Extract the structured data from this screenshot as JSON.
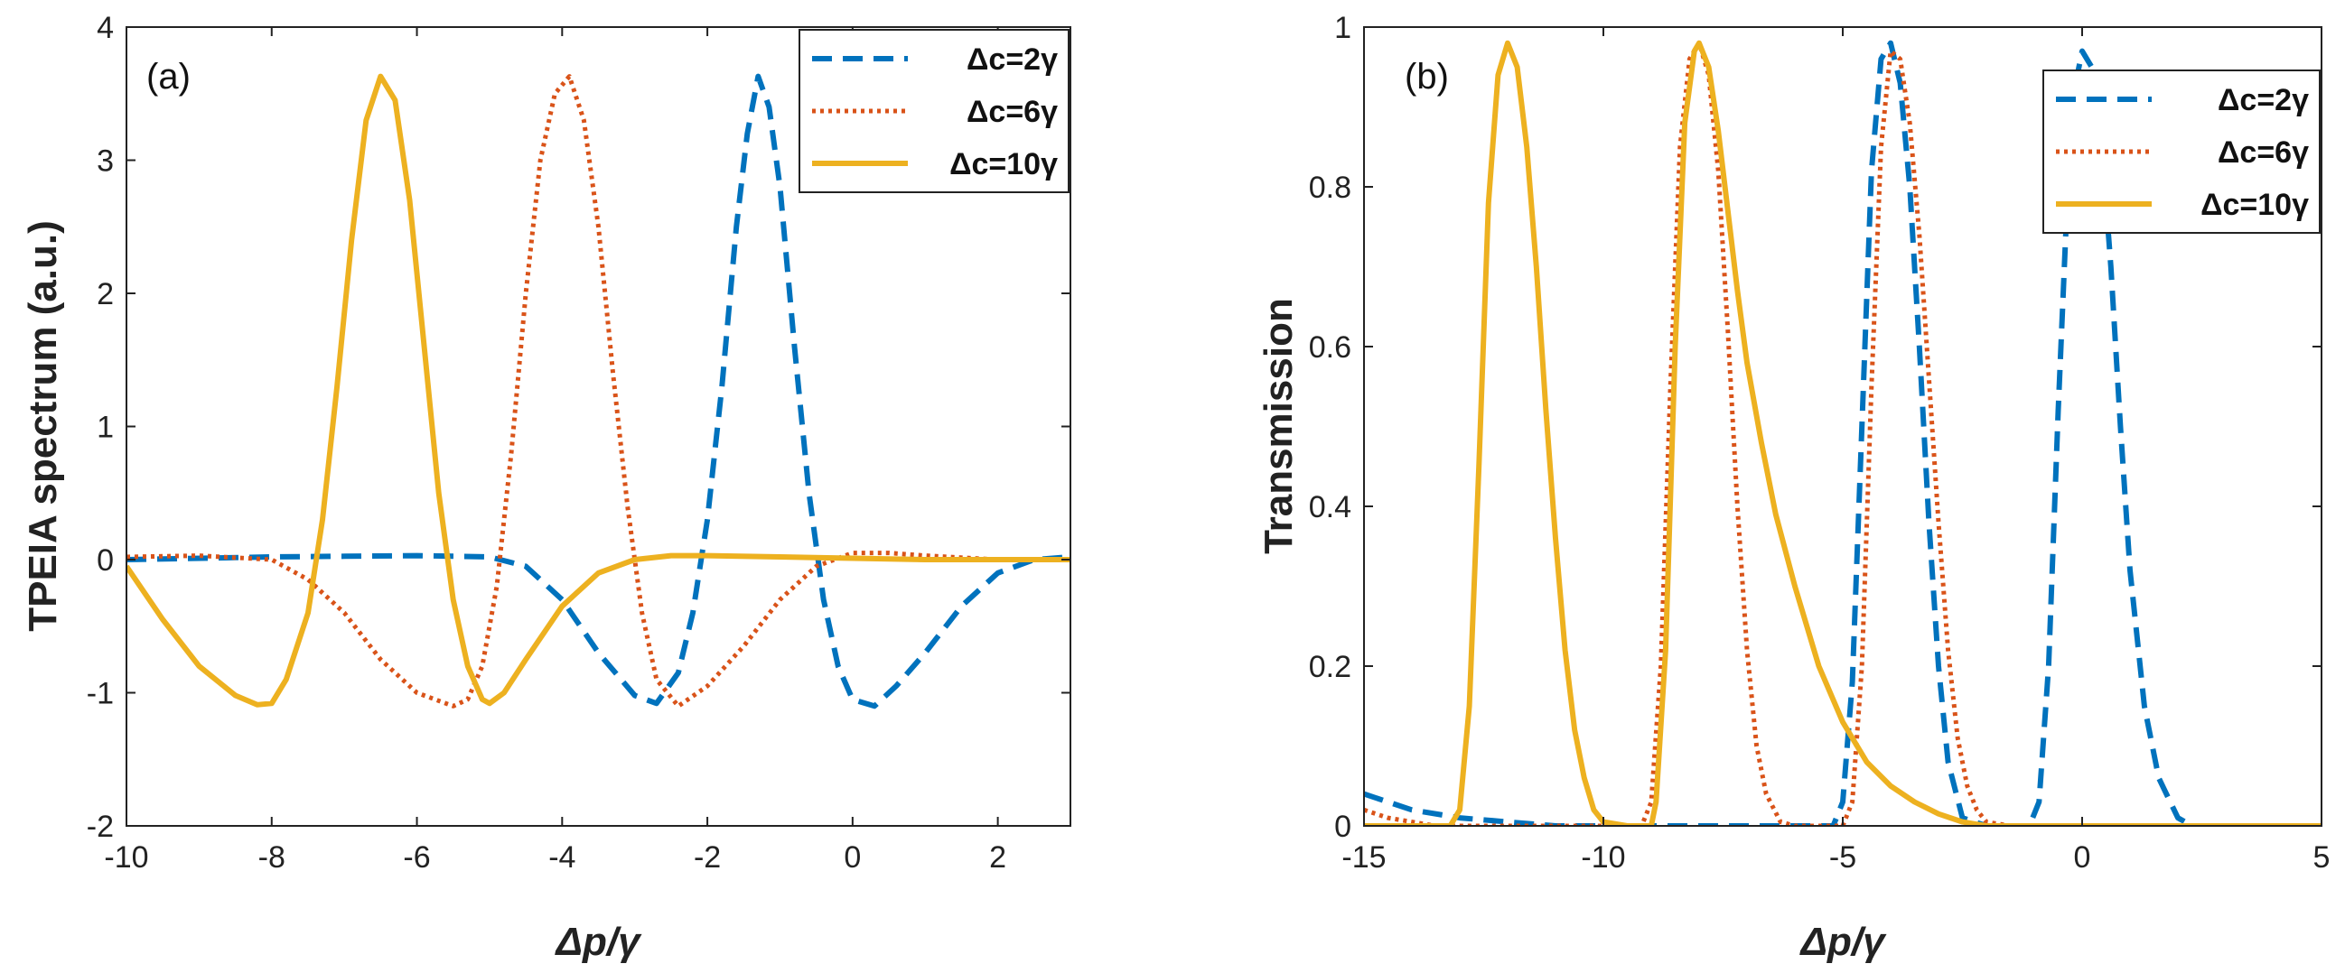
{
  "colors": {
    "dc2": "#0072BD",
    "dc6": "#D95319",
    "dc10": "#EDB120",
    "axis": "#222222"
  },
  "chart_data": [
    {
      "type": "line",
      "panel_label": "(a)",
      "xlabel": "Δp/γ",
      "ylabel": "TPEIA spectrum (a.u.)",
      "xlim": [
        -10,
        3
      ],
      "ylim": [
        -2,
        4
      ],
      "xticks": [
        -10,
        -8,
        -6,
        -4,
        -2,
        0,
        2
      ],
      "yticks": [
        -2,
        -1,
        0,
        1,
        2,
        3,
        4
      ],
      "legend_position": "top-right",
      "series": [
        {
          "name": "Δc=2γ",
          "color_key": "dc2",
          "style": "dashed",
          "x": [
            -10,
            -8,
            -6,
            -5,
            -4.5,
            -4,
            -3.5,
            -3,
            -2.7,
            -2.4,
            -2.2,
            -2.0,
            -1.8,
            -1.6,
            -1.45,
            -1.3,
            -1.15,
            -1.0,
            -0.8,
            -0.6,
            -0.4,
            -0.2,
            0.0,
            0.3,
            0.6,
            1.0,
            1.5,
            2.0,
            2.5,
            3.0
          ],
          "y": [
            0.0,
            0.02,
            0.03,
            0.02,
            -0.05,
            -0.3,
            -0.7,
            -1.02,
            -1.08,
            -0.85,
            -0.4,
            0.3,
            1.3,
            2.5,
            3.2,
            3.63,
            3.4,
            2.8,
            1.6,
            0.5,
            -0.3,
            -0.8,
            -1.05,
            -1.1,
            -0.95,
            -0.7,
            -0.35,
            -0.1,
            0.0,
            0.02
          ]
        },
        {
          "name": "Δc=6γ",
          "color_key": "dc6",
          "style": "dotted",
          "x": [
            -10,
            -9,
            -8,
            -7.5,
            -7,
            -6.5,
            -6,
            -5.5,
            -5.3,
            -5.1,
            -4.9,
            -4.7,
            -4.5,
            -4.3,
            -4.1,
            -3.9,
            -3.7,
            -3.5,
            -3.3,
            -3.1,
            -2.9,
            -2.7,
            -2.4,
            -2.0,
            -1.5,
            -1.0,
            -0.5,
            0.0,
            0.5,
            1.0,
            2.0,
            3.0
          ],
          "y": [
            0.02,
            0.03,
            0.0,
            -0.15,
            -0.4,
            -0.75,
            -1.0,
            -1.1,
            -1.05,
            -0.8,
            -0.2,
            0.8,
            2.0,
            3.0,
            3.5,
            3.63,
            3.3,
            2.5,
            1.4,
            0.4,
            -0.4,
            -0.9,
            -1.1,
            -0.95,
            -0.65,
            -0.3,
            -0.05,
            0.05,
            0.05,
            0.03,
            0.0,
            0.0
          ]
        },
        {
          "name": "Δc=10γ",
          "color_key": "dc10",
          "style": "solid",
          "x": [
            -10,
            -9.5,
            -9,
            -8.5,
            -8.2,
            -8.0,
            -7.8,
            -7.5,
            -7.3,
            -7.1,
            -6.9,
            -6.7,
            -6.5,
            -6.3,
            -6.1,
            -5.9,
            -5.7,
            -5.5,
            -5.3,
            -5.1,
            -5.0,
            -4.8,
            -4.5,
            -4.0,
            -3.5,
            -3.0,
            -2.5,
            -2.0,
            -1.0,
            0.0,
            1.0,
            2.0,
            3.0
          ],
          "y": [
            -0.05,
            -0.45,
            -0.8,
            -1.02,
            -1.09,
            -1.08,
            -0.9,
            -0.4,
            0.3,
            1.3,
            2.4,
            3.3,
            3.63,
            3.45,
            2.7,
            1.6,
            0.5,
            -0.3,
            -0.8,
            -1.05,
            -1.08,
            -1.0,
            -0.75,
            -0.35,
            -0.1,
            0.0,
            0.03,
            0.03,
            0.02,
            0.01,
            0.0,
            0.0,
            0.0
          ]
        }
      ]
    },
    {
      "type": "line",
      "panel_label": "(b)",
      "xlabel": "Δp/γ",
      "ylabel": "Transmission",
      "xlim": [
        -15,
        5
      ],
      "ylim": [
        0,
        1
      ],
      "xticks": [
        -15,
        -10,
        -5,
        0,
        5
      ],
      "yticks": [
        0,
        0.2,
        0.4,
        0.6,
        0.8,
        1
      ],
      "legend_position": "top-right",
      "series": [
        {
          "name": "Δc=2γ",
          "color_key": "dc2",
          "style": "dashed",
          "x": [
            -15,
            -14,
            -13,
            -12,
            -11,
            -10,
            -9,
            -8,
            -7,
            -6,
            -5.2,
            -5.0,
            -4.8,
            -4.6,
            -4.4,
            -4.2,
            -4.0,
            -3.8,
            -3.6,
            -3.4,
            -3.2,
            -3.0,
            -2.8,
            -2.5,
            -2.0,
            -1.5,
            -1.1,
            -0.9,
            -0.7,
            -0.5,
            -0.3,
            -0.1,
            0.0,
            0.2,
            0.4,
            0.6,
            0.8,
            1.0,
            1.3,
            1.6,
            2.0,
            2.3,
            3.0,
            4.0,
            5.0
          ],
          "y": [
            0.04,
            0.02,
            0.01,
            0.005,
            0.0,
            0.0,
            0.0,
            0.0,
            0.0,
            0.0,
            0.0,
            0.03,
            0.18,
            0.5,
            0.82,
            0.96,
            0.98,
            0.93,
            0.8,
            0.6,
            0.38,
            0.2,
            0.08,
            0.01,
            0.0,
            0.0,
            0.0,
            0.03,
            0.2,
            0.52,
            0.8,
            0.94,
            0.97,
            0.95,
            0.86,
            0.7,
            0.5,
            0.32,
            0.15,
            0.06,
            0.01,
            0.0,
            0.0,
            0.0,
            0.0
          ]
        },
        {
          "name": "Δc=6γ",
          "color_key": "dc6",
          "style": "dotted",
          "x": [
            -15,
            -14.5,
            -14,
            -13.5,
            -13,
            -12,
            -10,
            -9.2,
            -9.0,
            -8.8,
            -8.6,
            -8.4,
            -8.2,
            -8.0,
            -7.8,
            -7.6,
            -7.4,
            -7.2,
            -7.0,
            -6.8,
            -6.6,
            -6.3,
            -6.0,
            -5.5,
            -5.0,
            -4.8,
            -4.6,
            -4.4,
            -4.2,
            -4.0,
            -3.8,
            -3.6,
            -3.4,
            -3.2,
            -3.0,
            -2.8,
            -2.6,
            -2.4,
            -2.2,
            -2.0,
            -1.5,
            -1.0,
            0.0,
            5.0
          ],
          "y": [
            0.02,
            0.01,
            0.005,
            0.0,
            0.0,
            0.0,
            0.0,
            0.0,
            0.03,
            0.2,
            0.55,
            0.85,
            0.96,
            0.98,
            0.94,
            0.82,
            0.62,
            0.4,
            0.22,
            0.1,
            0.04,
            0.005,
            0.0,
            0.0,
            0.0,
            0.03,
            0.2,
            0.55,
            0.85,
            0.97,
            0.96,
            0.88,
            0.74,
            0.56,
            0.38,
            0.22,
            0.11,
            0.05,
            0.02,
            0.005,
            0.0,
            0.0,
            0.0,
            0.0
          ]
        },
        {
          "name": "Δc=10γ",
          "color_key": "dc10",
          "style": "solid",
          "x": [
            -15,
            -14,
            -13.2,
            -13.0,
            -12.8,
            -12.6,
            -12.4,
            -12.2,
            -12.0,
            -11.8,
            -11.6,
            -11.4,
            -11.2,
            -11.0,
            -10.8,
            -10.6,
            -10.4,
            -10.2,
            -10.0,
            -9.5,
            -9.0,
            -8.9,
            -8.7,
            -8.5,
            -8.3,
            -8.1,
            -8.0,
            -7.8,
            -7.6,
            -7.4,
            -7.2,
            -7.0,
            -6.7,
            -6.4,
            -6.0,
            -5.5,
            -5.0,
            -4.5,
            -4.0,
            -3.5,
            -3.0,
            -2.5,
            -2.0,
            0.0,
            5.0
          ],
          "y": [
            0.0,
            0.0,
            0.0,
            0.02,
            0.15,
            0.45,
            0.78,
            0.94,
            0.98,
            0.95,
            0.85,
            0.7,
            0.52,
            0.36,
            0.22,
            0.12,
            0.06,
            0.02,
            0.005,
            0.0,
            0.0,
            0.03,
            0.22,
            0.6,
            0.88,
            0.97,
            0.98,
            0.95,
            0.87,
            0.77,
            0.67,
            0.58,
            0.48,
            0.39,
            0.3,
            0.2,
            0.13,
            0.08,
            0.05,
            0.03,
            0.015,
            0.005,
            0.0,
            0.0,
            0.0
          ]
        }
      ]
    }
  ]
}
